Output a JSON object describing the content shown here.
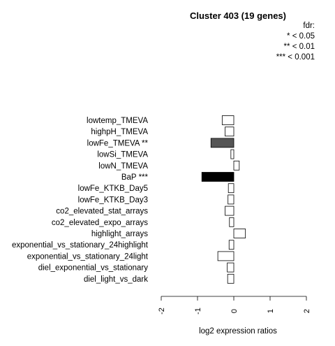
{
  "chart_data": {
    "type": "bar",
    "orientation": "horizontal",
    "title": "Cluster 403 (19 genes)",
    "xlabel": "log2 expression ratios",
    "xlim": [
      -2,
      2
    ],
    "xticks": [
      "-2",
      "-1",
      "0",
      "1",
      "2"
    ],
    "legend": {
      "placement": "top-right",
      "lines": [
        "fdr:",
        "* < 0.05",
        "** < 0.01",
        "*** < 0.001"
      ]
    },
    "categories": [
      "lowtemp_TMEVA",
      "highpH_TMEVA",
      "lowFe_TMEVA **",
      "lowSi_TMEVA",
      "lowN_TMEVA",
      "BaP ***",
      "lowFe_KTKB_Day5",
      "lowFe_KTKB_Day3",
      "co2_elevated_stat_arrays",
      "co2_elevated_expo_arrays",
      "highlight_arrays",
      "exponential_vs_stationary_24highlight",
      "exponential_vs_stationary_24light",
      "diel_exponential_vs_stationary",
      "diel_light_vs_dark"
    ],
    "values": [
      -0.32,
      -0.24,
      -0.63,
      -0.08,
      0.15,
      -0.88,
      -0.15,
      -0.16,
      -0.24,
      -0.12,
      0.32,
      -0.13,
      -0.44,
      -0.18,
      -0.17
    ],
    "bar_fill": [
      "#ffffff",
      "#ffffff",
      "#555555",
      "#ffffff",
      "#ffffff",
      "#000000",
      "#ffffff",
      "#ffffff",
      "#ffffff",
      "#ffffff",
      "#ffffff",
      "#ffffff",
      "#ffffff",
      "#ffffff",
      "#ffffff"
    ]
  }
}
